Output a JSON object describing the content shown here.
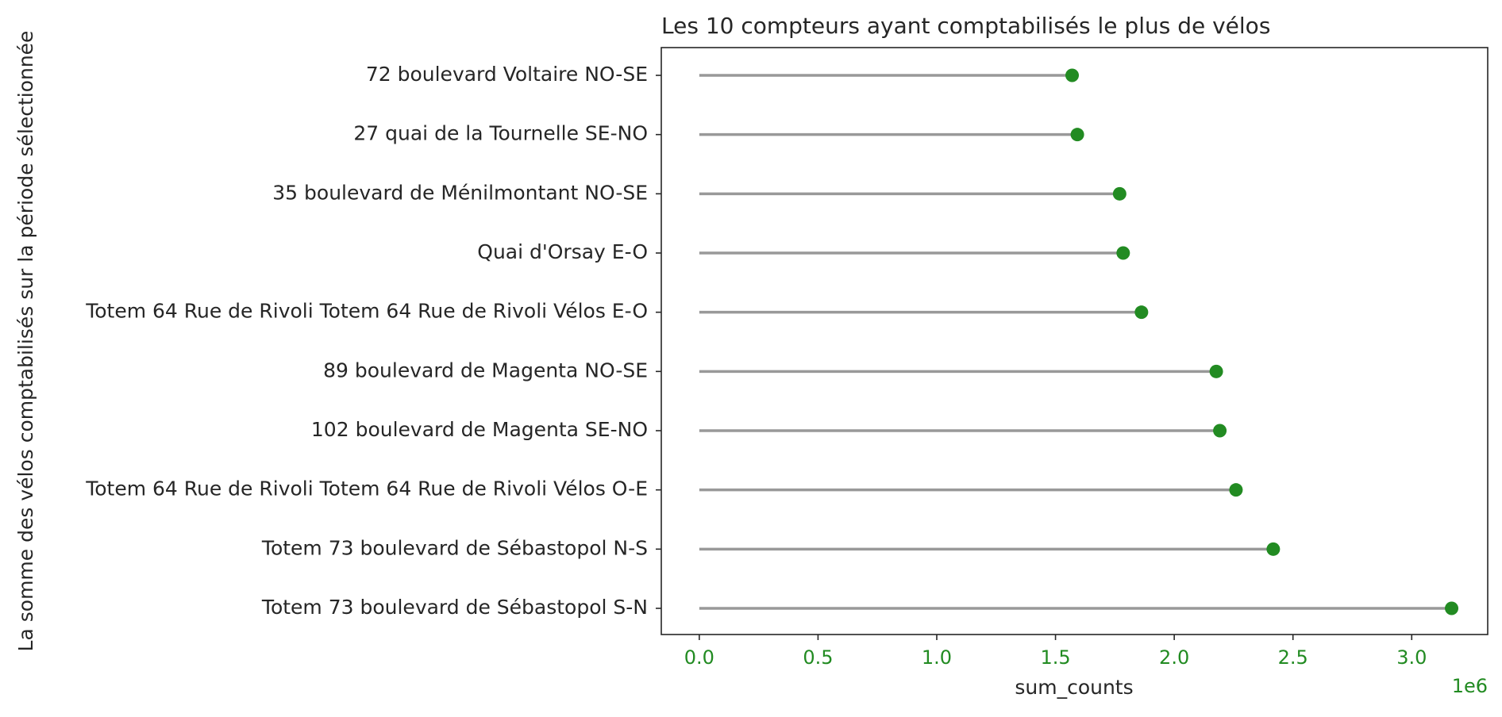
{
  "chart_data": {
    "type": "lollipop",
    "title": "Les 10 compteurs ayant comptabilisés le plus de vélos",
    "xlabel": "sum_counts",
    "ylabel": "La somme des vélos comptabilisés sur la période sélectionnée",
    "x_offset_label": "1e6",
    "xlim": [
      -160000,
      3320000
    ],
    "x_ticks": [
      0,
      500000,
      1000000,
      1500000,
      2000000,
      2500000,
      3000000
    ],
    "x_tick_labels": [
      "0.0",
      "0.5",
      "1.0",
      "1.5",
      "2.0",
      "2.5",
      "3.0"
    ],
    "categories": [
      "72 boulevard Voltaire NO-SE",
      "27 quai de la Tournelle SE-NO",
      "35 boulevard de Ménilmontant NO-SE",
      "Quai d'Orsay E-O",
      "Totem 64 Rue de Rivoli Totem 64 Rue de Rivoli Vélos E-O",
      "89 boulevard de Magenta NO-SE",
      "102 boulevard de Magenta SE-NO",
      "Totem 64 Rue de Rivoli Totem 64 Rue de Rivoli Vélos O-E",
      "Totem 73 boulevard de Sébastopol N-S",
      "Totem 73 boulevard de Sébastopol S-N"
    ],
    "values": [
      1570000,
      1592000,
      1770000,
      1785000,
      1862000,
      2177000,
      2192000,
      2260000,
      2417000,
      3168000
    ],
    "grid": false,
    "colors": {
      "marker": "#228b22",
      "stem": "#999999",
      "x_tick_labels": "#228b22",
      "text": "#262626",
      "axes": "#262626"
    }
  }
}
